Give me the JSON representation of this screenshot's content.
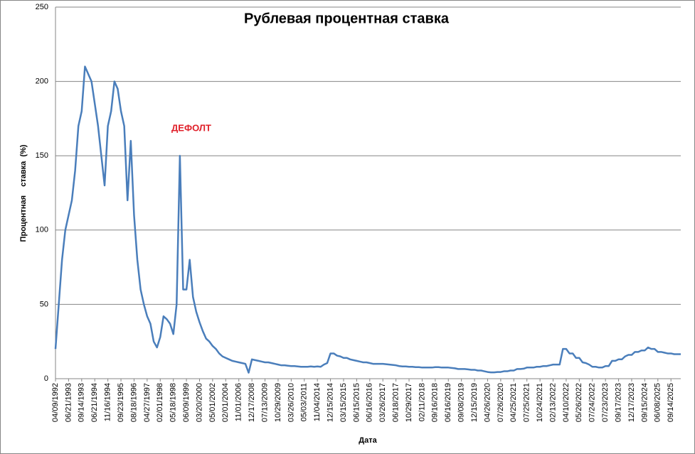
{
  "chart_data": {
    "type": "line",
    "title": "Рублевая процентная ставка",
    "annotation": "ДЕФОЛТ",
    "x_label": "Дата",
    "y_label": "Процентная    ставка  (%)",
    "categories": [
      "04/09/1992",
      null,
      null,
      null,
      "06/21/1993",
      null,
      null,
      null,
      "09/14/1993",
      null,
      null,
      null,
      "06/21/1994",
      null,
      null,
      null,
      "11/16/1994",
      null,
      null,
      null,
      "09/23/1995",
      null,
      null,
      null,
      "08/18/1996",
      null,
      null,
      null,
      "04/27/1997",
      null,
      null,
      null,
      "02/01/1998",
      null,
      null,
      null,
      "05/18/1998",
      null,
      null,
      null,
      "06/09/1999",
      null,
      null,
      null,
      "03/20/2000",
      null,
      null,
      null,
      "05/01/2002",
      null,
      null,
      null,
      "02/01/2004",
      null,
      null,
      null,
      "11/01/2006",
      null,
      null,
      null,
      "12/17/2008",
      null,
      null,
      null,
      "07/13/2009",
      null,
      null,
      null,
      "10/29/2009",
      null,
      null,
      null,
      "03/26/2010",
      null,
      null,
      null,
      "05/03/2011",
      null,
      null,
      null,
      "11/04/2014",
      null,
      null,
      null,
      "12/15/2014",
      null,
      null,
      null,
      "03/15/2015",
      null,
      null,
      null,
      "06/15/2015",
      null,
      null,
      null,
      "06/16/2016",
      null,
      null,
      null,
      "03/26/2017",
      null,
      null,
      null,
      "06/18/2017",
      null,
      null,
      null,
      "10/29/2017",
      null,
      null,
      null,
      "02/11/2018",
      null,
      null,
      null,
      "09/16/2018",
      null,
      null,
      null,
      "06/16/2019",
      null,
      null,
      null,
      "09/08/2019",
      null,
      null,
      null,
      "12/15/2019",
      null,
      null,
      null,
      "04/26/2020",
      null,
      null,
      null,
      "07/26/2020",
      null,
      null,
      null,
      "04/25/2021",
      null,
      null,
      null,
      "07/25/2021",
      null,
      null,
      null,
      "10/24/2021",
      null,
      null,
      null,
      "02/13/2022",
      null,
      null,
      null,
      "04/10/2022",
      null,
      null,
      null,
      "05/26/2022",
      null,
      null,
      null,
      "07/24/2022",
      null,
      null,
      null,
      "07/23/2023",
      null,
      null,
      null,
      "09/17/2023",
      null,
      null,
      null,
      "12/17/2023",
      null,
      null,
      null,
      "09/15/2024",
      null,
      null,
      null,
      "06/08/2025",
      null,
      null,
      null,
      "09/14/2025",
      null,
      null,
      null
    ],
    "values": [
      20,
      50,
      80,
      100,
      110,
      120,
      140,
      170,
      180,
      210,
      205,
      200,
      185,
      170,
      150,
      130,
      170,
      180,
      200,
      195,
      180,
      170,
      120,
      160,
      110,
      80,
      60,
      50,
      42,
      37,
      25,
      21,
      28,
      42,
      40,
      37,
      30,
      50,
      150,
      60,
      60,
      80,
      55,
      45,
      38,
      32,
      27,
      25,
      22,
      20,
      17,
      15,
      14,
      13,
      12,
      11.5,
      11,
      10.5,
      10,
      4,
      13,
      12.5,
      12,
      11.5,
      11,
      11,
      10.5,
      10,
      9.5,
      9,
      9,
      8.75,
      8.5,
      8.5,
      8.25,
      8,
      8,
      8,
      8.25,
      8,
      8.25,
      8,
      9.5,
      10.5,
      17,
      17,
      15.5,
      15,
      14,
      14,
      13,
      12.5,
      12,
      11.5,
      11,
      11,
      10.5,
      10,
      10,
      10,
      10,
      9.75,
      9.5,
      9.25,
      9,
      8.5,
      8.25,
      8.25,
      8,
      8,
      7.75,
      7.75,
      7.5,
      7.5,
      7.5,
      7.5,
      7.75,
      7.75,
      7.5,
      7.5,
      7.5,
      7.25,
      7,
      6.5,
      6.5,
      6.5,
      6.25,
      6,
      6,
      5.5,
      5.5,
      5,
      4.5,
      4.25,
      4.25,
      4.5,
      4.5,
      5,
      5,
      5.5,
      5.5,
      6.5,
      6.5,
      6.75,
      7.5,
      7.5,
      7.5,
      8,
      8,
      8.5,
      8.5,
      9,
      9.5,
      9.5,
      9.5,
      20,
      20,
      17,
      17,
      14,
      14,
      11,
      10.5,
      9.5,
      8,
      8,
      7.5,
      7.5,
      8.5,
      8.5,
      12,
      12,
      13,
      13,
      15,
      16,
      16,
      18,
      18,
      19,
      19,
      21,
      20,
      20,
      18,
      18,
      17.5,
      17,
      17,
      16.5,
      16.5,
      16.5
    ],
    "color": "#4a7ebb",
    "ylim": [
      0,
      250
    ],
    "yticks": [
      0,
      50,
      100,
      150,
      200,
      250
    ],
    "grid": true
  }
}
